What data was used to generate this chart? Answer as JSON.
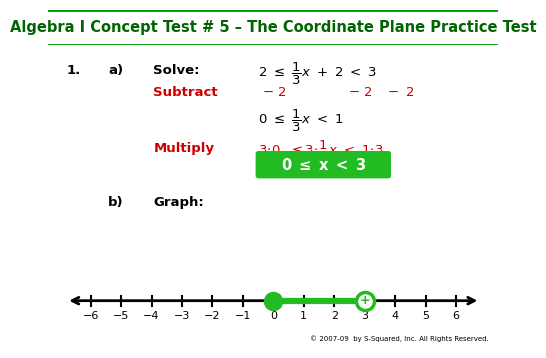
{
  "title": "Algebra I Concept Test # 5 – The Coordinate Plane Practice Test",
  "title_bg": "#ffff00",
  "title_border": "#009900",
  "title_color": "#006400",
  "title_fontsize": 10.5,
  "bg_color": "#ffffff",
  "number_line_min": -6,
  "number_line_max": 6,
  "filled_dot": 0,
  "open_dot": 3,
  "segment_color": "#22bb22",
  "line_color": "#000000",
  "answer_box_bg": "#22bb22",
  "answer_box_color": "#ffffff",
  "red_color": "#cc0000",
  "copyright": "© 2007-09  by S-Squared, Inc. All Rights Reserved."
}
